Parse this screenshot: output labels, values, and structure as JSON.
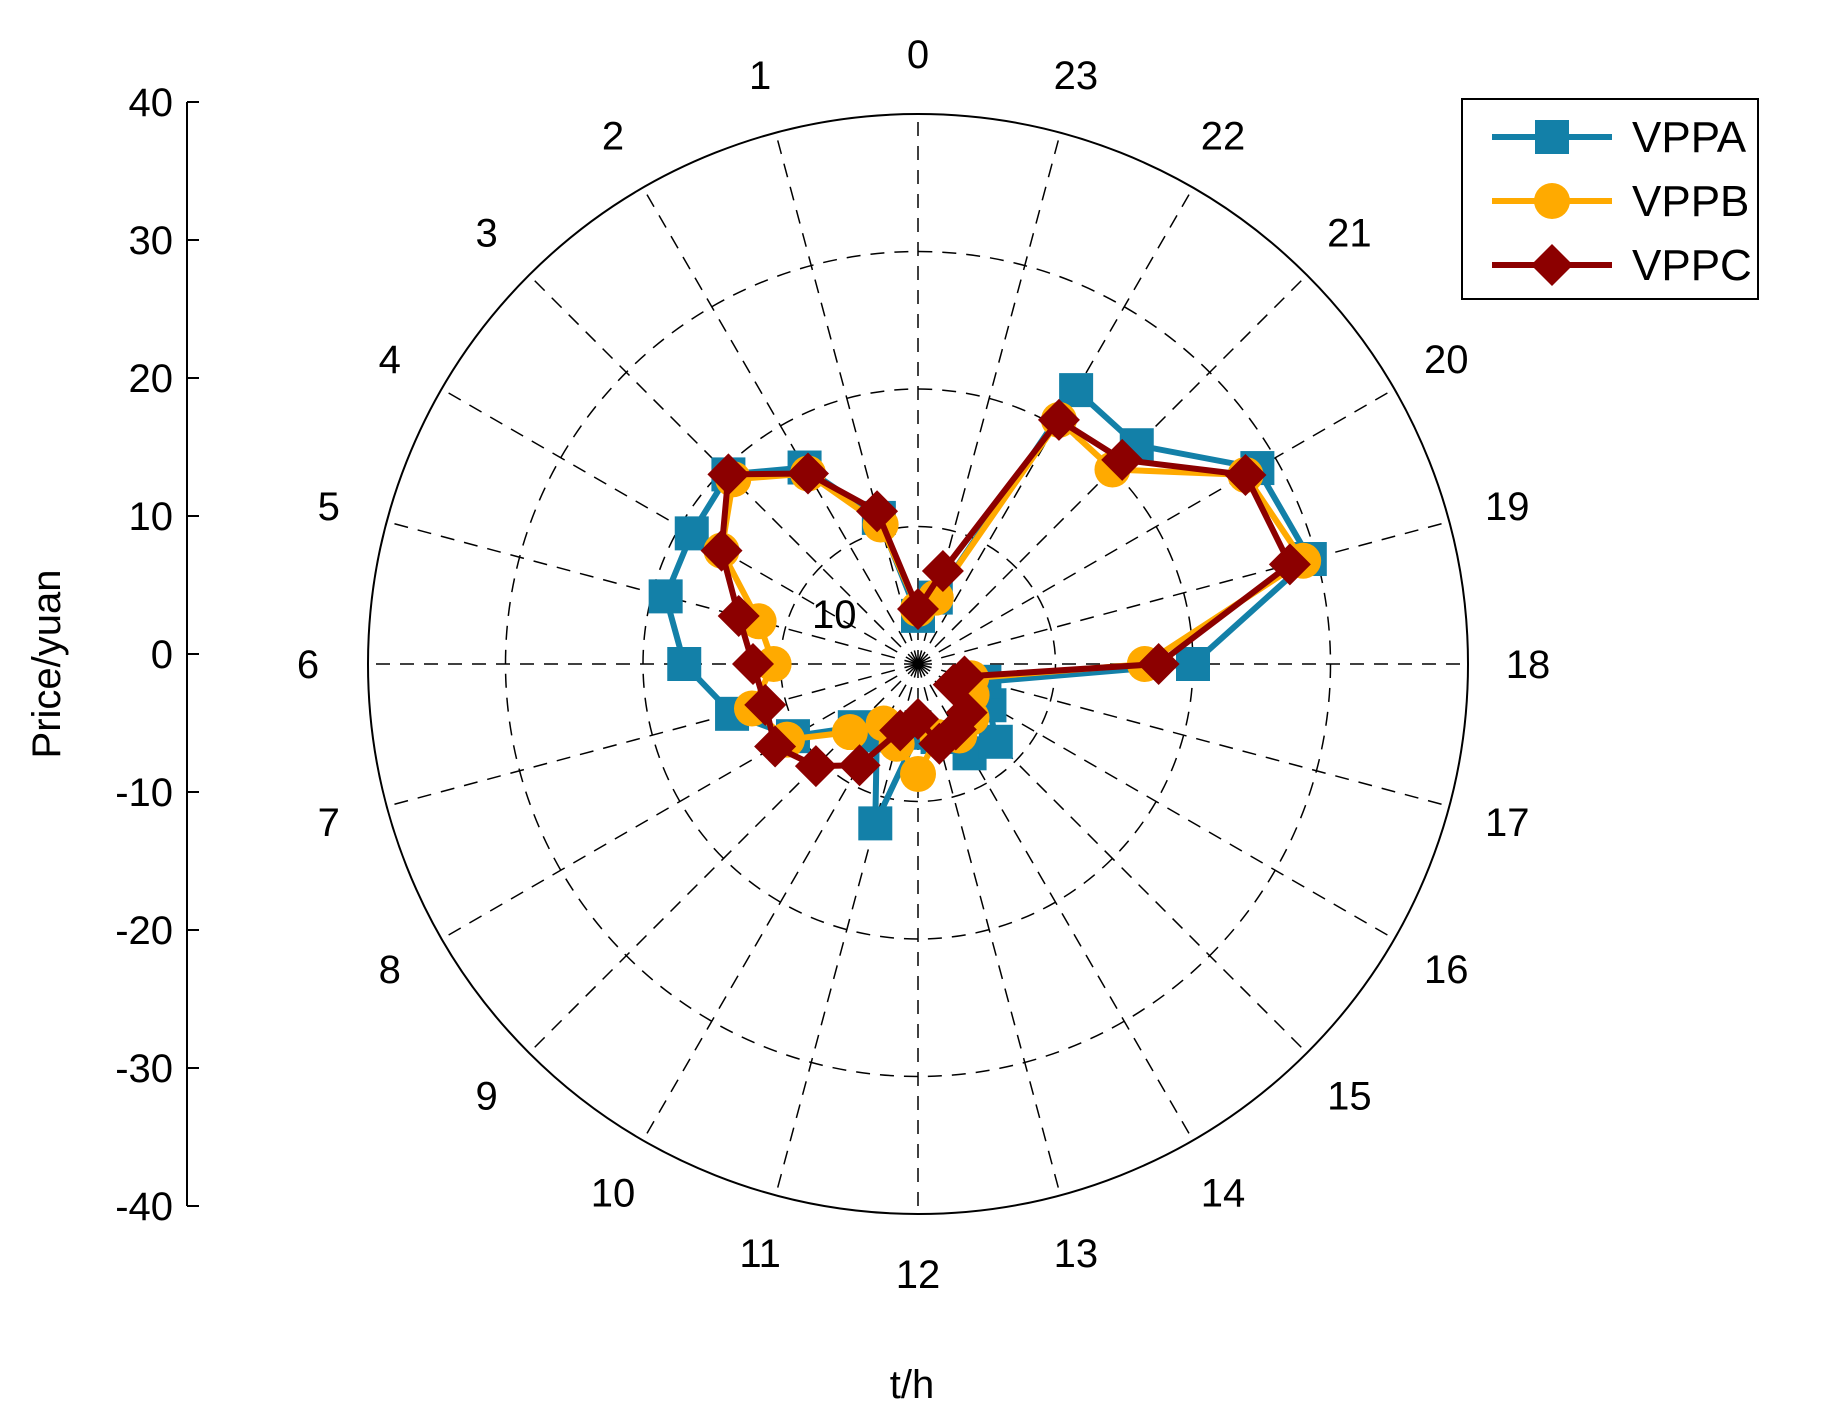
{
  "chart_data": {
    "type": "polar-line",
    "xlabel": "t/h",
    "ylabel": "Price/yuan",
    "ylim": [
      -40,
      40
    ],
    "yticks": [
      40,
      30,
      20,
      10,
      0,
      -10,
      -20,
      -30,
      -40
    ],
    "angular_ticks": [
      "0",
      "1",
      "2",
      "3",
      "4",
      "5",
      "6",
      "7",
      "8",
      "9",
      "10",
      "11",
      "12",
      "13",
      "14",
      "15",
      "16",
      "17",
      "18",
      "19",
      "20",
      "21",
      "22",
      "23"
    ],
    "radial_ring_label": "10",
    "radial_baseline": -40,
    "radial_max": 40,
    "legend_position": "top-right",
    "grid": true,
    "series": [
      {
        "name": "VPPA",
        "marker": "square",
        "color": "#1380A8",
        "values": [
          -33,
          -18,
          -7,
          -1,
          -2,
          -2,
          -6,
          -12,
          -19,
          -27,
          -28,
          -16,
          -30,
          -29,
          -25,
          -24,
          -28,
          -30,
          0,
          19,
          17,
          5,
          6,
          -30
        ]
      },
      {
        "name": "VPPB",
        "marker": "circle",
        "color": "#FFAA00",
        "values": [
          -32,
          -19,
          -8,
          -2,
          -7,
          -16,
          -19,
          -15,
          -18,
          -26,
          -30,
          -28,
          -24,
          -29,
          -28,
          -29,
          -31,
          -32,
          -7,
          18,
          15,
          0,
          1,
          -30
        ]
      },
      {
        "name": "VPPC",
        "marker": "diamond",
        "color": "#8C0000",
        "values": [
          -32,
          -17,
          -8,
          -1,
          -7,
          -13,
          -16,
          -17,
          -16,
          -19,
          -23,
          -30,
          -32,
          -28,
          -29,
          -30,
          -34,
          -33,
          -5,
          16,
          15,
          2,
          1,
          -26
        ]
      }
    ]
  }
}
